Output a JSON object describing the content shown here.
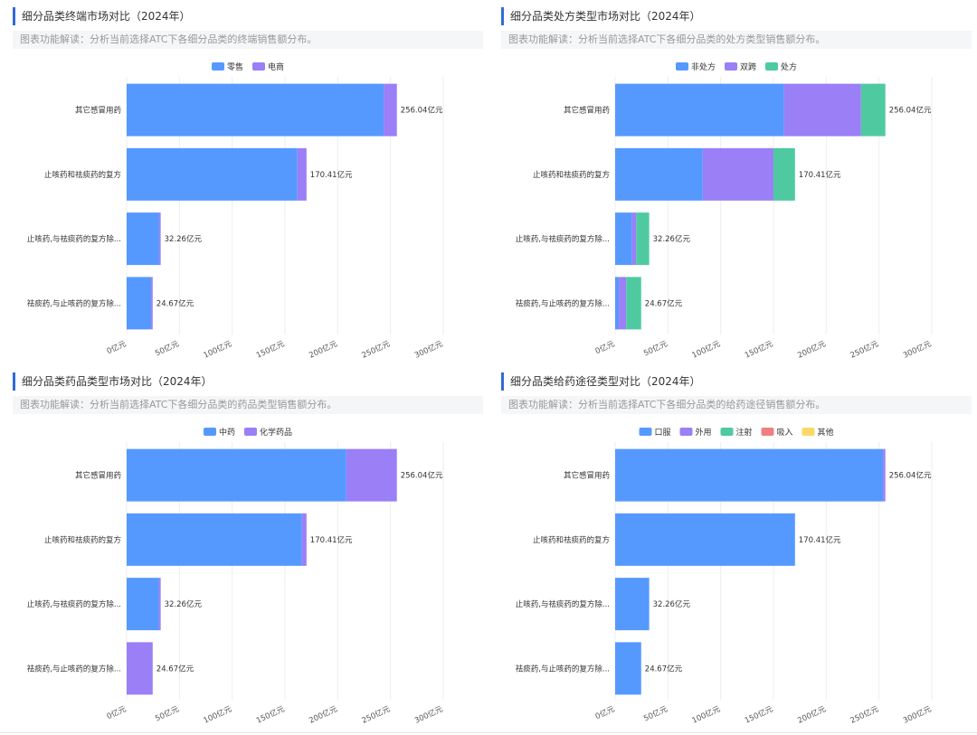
{
  "palette": [
    "#5599ff",
    "#9a7ff7",
    "#4fcaa0",
    "#f07f7f",
    "#fbd86a"
  ],
  "chart_data": [
    {
      "type": "bar",
      "orientation": "horizontal",
      "stacked": true,
      "title": "细分品类终端市场对比（2024年）",
      "description": "图表功能解读：分析当前选择ATC下各细分品类的终端销售额分布。",
      "categories": [
        "其它感冒用药",
        "止咳药和祛痰药的复方",
        "止咳药,与祛痰药的复方除...",
        "祛痰药,与止咳药的复方除..."
      ],
      "series": [
        {
          "name": "零售",
          "values": [
            243.5,
            161.8,
            30.8,
            23.2
          ]
        },
        {
          "name": "电商",
          "values": [
            12.54,
            8.61,
            1.46,
            1.47
          ]
        }
      ],
      "totals": [
        "256.04亿元",
        "170.41亿元",
        "32.26亿元",
        "24.67亿元"
      ],
      "total_values": [
        256.04,
        170.41,
        32.26,
        24.67
      ],
      "xticks": [
        "0亿元",
        "50亿元",
        "100亿元",
        "150亿元",
        "200亿元",
        "250亿元",
        "300亿元"
      ],
      "xlim": [
        0,
        300
      ],
      "legend": "top-center"
    },
    {
      "type": "bar",
      "orientation": "horizontal",
      "stacked": true,
      "title": "细分品类处方类型市场对比（2024年）",
      "description": "图表功能解读：分析当前选择ATC下各细分品类的处方类型销售额分布。",
      "categories": [
        "其它感冒用药",
        "止咳药和祛痰药的复方",
        "止咳药,与祛痰药的复方除...",
        "祛痰药,与止咳药的复方除..."
      ],
      "series": [
        {
          "name": "非处方",
          "values": [
            160,
            83,
            16,
            3.5
          ]
        },
        {
          "name": "双跨",
          "values": [
            73,
            67,
            4,
            7
          ]
        },
        {
          "name": "处方",
          "values": [
            23.04,
            20.41,
            12.26,
            14.17
          ]
        }
      ],
      "totals": [
        "256.04亿元",
        "170.41亿元",
        "32.26亿元",
        "24.67亿元"
      ],
      "total_values": [
        256.04,
        170.41,
        32.26,
        24.67
      ],
      "xticks": [
        "0亿元",
        "50亿元",
        "100亿元",
        "150亿元",
        "200亿元",
        "250亿元",
        "300亿元"
      ],
      "xlim": [
        0,
        300
      ],
      "legend": "top-center"
    },
    {
      "type": "bar",
      "orientation": "horizontal",
      "stacked": true,
      "title": "细分品类药品类型市场对比（2024年）",
      "description": "图表功能解读：分析当前选择ATC下各细分品类的药品类型销售额分布。",
      "categories": [
        "其它感冒用药",
        "止咳药和祛痰药的复方",
        "止咳药,与祛痰药的复方除...",
        "祛痰药,与止咳药的复方除..."
      ],
      "series": [
        {
          "name": "中药",
          "values": [
            208,
            166,
            30.5,
            0
          ]
        },
        {
          "name": "化学药品",
          "values": [
            48.04,
            4.41,
            1.76,
            24.67
          ]
        }
      ],
      "totals": [
        "256.04亿元",
        "170.41亿元",
        "32.26亿元",
        "24.67亿元"
      ],
      "total_values": [
        256.04,
        170.41,
        32.26,
        24.67
      ],
      "xticks": [
        "0亿元",
        "50亿元",
        "100亿元",
        "150亿元",
        "200亿元",
        "250亿元",
        "300亿元"
      ],
      "xlim": [
        0,
        300
      ],
      "legend": "top-center"
    },
    {
      "type": "bar",
      "orientation": "horizontal",
      "stacked": true,
      "title": "细分品类给药途径类型对比（2024年）",
      "description": "图表功能解读：分析当前选择ATC下各细分品类的给药途径销售额分布。",
      "categories": [
        "其它感冒用药",
        "止咳药和祛痰药的复方",
        "止咳药,与祛痰药的复方除...",
        "祛痰药,与止咳药的复方除..."
      ],
      "series": [
        {
          "name": "口服",
          "values": [
            253.8,
            170.41,
            32.26,
            24.67
          ]
        },
        {
          "name": "外用",
          "values": [
            2.24,
            0,
            0,
            0
          ]
        },
        {
          "name": "注射",
          "values": [
            0,
            0,
            0,
            0
          ]
        },
        {
          "name": "吸入",
          "values": [
            0,
            0,
            0,
            0
          ]
        },
        {
          "name": "其他",
          "values": [
            0,
            0,
            0,
            0
          ]
        }
      ],
      "totals": [
        "256.04亿元",
        "170.41亿元",
        "32.26亿元",
        "24.67亿元"
      ],
      "total_values": [
        256.04,
        170.41,
        32.26,
        24.67
      ],
      "xticks": [
        "0亿元",
        "50亿元",
        "100亿元",
        "150亿元",
        "200亿元",
        "250亿元",
        "300亿元"
      ],
      "xlim": [
        0,
        300
      ],
      "legend": "top-center"
    }
  ]
}
